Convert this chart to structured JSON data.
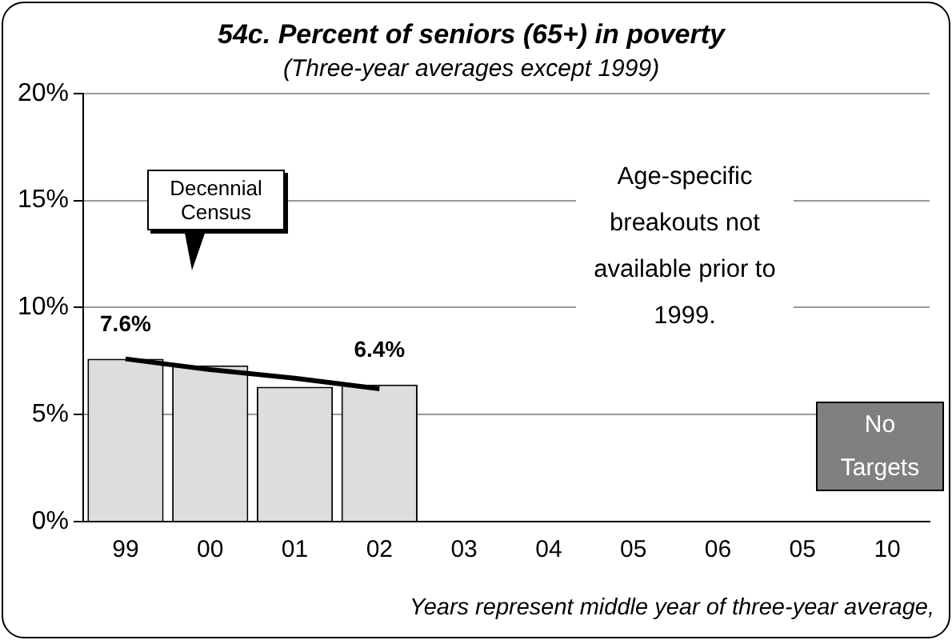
{
  "chart_data": {
    "type": "bar",
    "title": "54c. Percent of seniors (65+) in poverty",
    "subtitle": "(Three-year averages except 1999)",
    "categories": [
      "99",
      "00",
      "01",
      "02",
      "03",
      "04",
      "05",
      "06",
      "05",
      "10"
    ],
    "series": [
      {
        "color": "#dddddd",
        "values": [
          7.6,
          7.3,
          6.3,
          6.4,
          null,
          null,
          null,
          null,
          null,
          null
        ],
        "value_labels": [
          "7.6%",
          null,
          null,
          "6.4%",
          null,
          null,
          null,
          null,
          null,
          null
        ]
      },
      {
        "type": "line",
        "color": "#000000",
        "x": [
          "99",
          "00",
          "01",
          "02"
        ],
        "values": [
          7.6,
          7.1,
          6.7,
          6.2
        ]
      }
    ],
    "ylim": [
      0,
      20
    ],
    "yticks": [
      {
        "value": 0,
        "label": "0%"
      },
      {
        "value": 5,
        "label": "5%"
      },
      {
        "value": 10,
        "label": "10%"
      },
      {
        "value": 15,
        "label": "15%"
      },
      {
        "value": 20,
        "label": "20%"
      }
    ],
    "grid": "y",
    "marker": "none",
    "annotations": [
      "Decennial Census",
      "Age-specific breakouts not available prior to 1999.",
      "No Targets",
      "Years represent middle year of three-year average,"
    ]
  }
}
